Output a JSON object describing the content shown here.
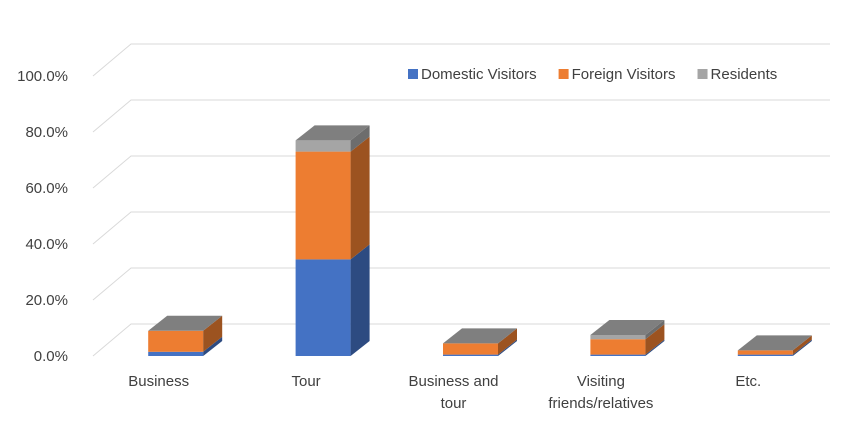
{
  "chart_data": {
    "type": "bar",
    "stacked": true,
    "three_d": true,
    "categories": [
      [
        "Business"
      ],
      [
        "Tour"
      ],
      [
        "Business and",
        "tour"
      ],
      [
        "Visiting",
        "friends/relatives"
      ],
      [
        "Etc."
      ]
    ],
    "series": [
      {
        "name": "Domestic Visitors",
        "color": "#4472C4",
        "values": [
          1.5,
          34.5,
          0.5,
          0.5,
          0.5
        ]
      },
      {
        "name": "Foreign Visitors",
        "color": "#ED7D31",
        "values": [
          7.5,
          38.5,
          4.0,
          5.5,
          1.5
        ]
      },
      {
        "name": "Residents",
        "color": "#A5A5A5",
        "values": [
          0.0,
          4.0,
          0.0,
          1.5,
          0.0
        ]
      }
    ],
    "y_ticks": [
      "0.0%",
      "20.0%",
      "40.0%",
      "60.0%",
      "80.0%",
      "100.0%"
    ],
    "ylim": [
      0,
      100
    ],
    "grid": true,
    "legend_position": "top-right"
  }
}
